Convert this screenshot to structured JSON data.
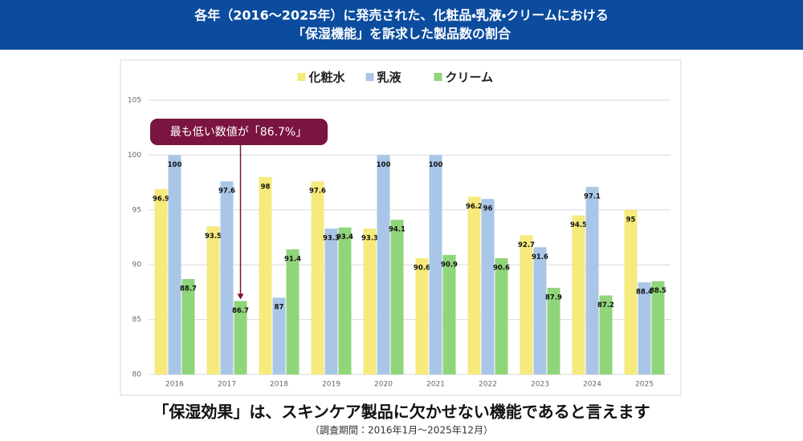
{
  "header": {
    "title_lines": [
      "各年（2016～2025年）に発売された、化粧品・乳液・クリームにおける",
      "「保湿機能」を訴求した製品数の割合"
    ]
  },
  "chart_data": {
    "type": "bar",
    "categories": [
      "2016",
      "2017",
      "2018",
      "2019",
      "2020",
      "2021",
      "2022",
      "2023",
      "2024",
      "2025"
    ],
    "series": [
      {
        "name": "化粧水",
        "color": "#f6ea7c",
        "values": [
          96.9,
          93.5,
          98,
          97.6,
          93.3,
          90.6,
          96.2,
          92.7,
          94.5,
          95
        ]
      },
      {
        "name": "乳液",
        "color": "#a9c6e8",
        "values": [
          100,
          97.6,
          87,
          93.3,
          100,
          100,
          96,
          91.6,
          97.1,
          88.4
        ]
      },
      {
        "name": "クリーム",
        "color": "#8fd57a",
        "values": [
          88.7,
          86.7,
          91.4,
          93.4,
          94.1,
          90.9,
          90.6,
          87.9,
          87.2,
          88.5
        ]
      }
    ],
    "ylim": [
      80,
      105
    ],
    "yticks": [
      80,
      85,
      90,
      95,
      100,
      105
    ],
    "grid": true,
    "annotation": "最も低い数値が「86.7%」"
  },
  "footer": {
    "conclusion": "「保湿効果」は、スキンケア製品に欠かせない機能であると言えます",
    "note": "（調査期間：2016年1月～2025年12月）"
  }
}
